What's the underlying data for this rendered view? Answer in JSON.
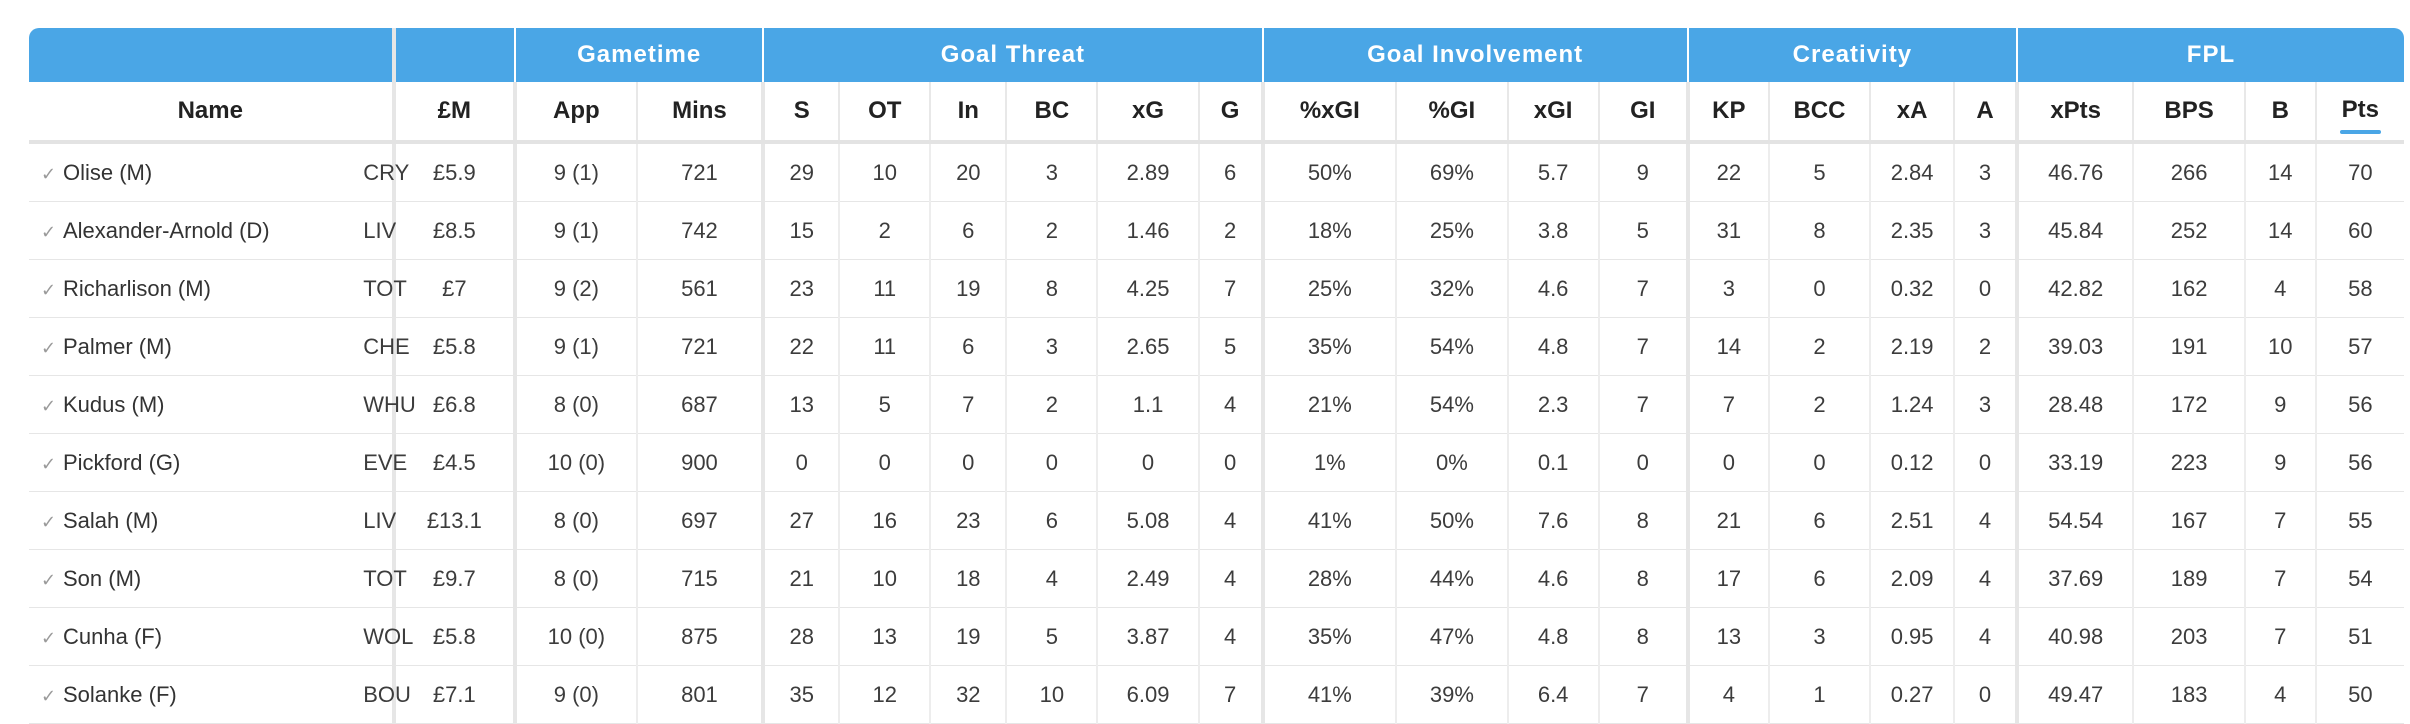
{
  "groups": {
    "gametime": "Gametime",
    "goal_threat": "Goal Threat",
    "goal_involvement": "Goal Involvement",
    "creativity": "Creativity",
    "fpl": "FPL"
  },
  "columns": {
    "name": "Name",
    "price": "£M",
    "app": "App",
    "mins": "Mins",
    "s": "S",
    "ot": "OT",
    "in": "In",
    "bc": "BC",
    "xg": "xG",
    "g": "G",
    "pct_xgi": "%xGI",
    "pct_gi": "%GI",
    "xgi": "xGI",
    "gi": "GI",
    "kp": "KP",
    "bcc": "BCC",
    "xa": "xA",
    "a": "A",
    "xpts": "xPts",
    "bps": "BPS",
    "b": "B",
    "pts": "Pts"
  },
  "sorted_column": "pts",
  "check_icon": "✓",
  "rows": [
    {
      "player": "Olise (M)",
      "team": "CRY",
      "price": "£5.9",
      "app": "9 (1)",
      "mins": "721",
      "s": "29",
      "ot": "10",
      "in": "20",
      "bc": "3",
      "xg": "2.89",
      "g": "6",
      "pct_xgi": "50%",
      "pct_gi": "69%",
      "xgi": "5.7",
      "gi": "9",
      "kp": "22",
      "bcc": "5",
      "xa": "2.84",
      "a": "3",
      "xpts": "46.76",
      "bps": "266",
      "b": "14",
      "pts": "70"
    },
    {
      "player": "Alexander-Arnold (D)",
      "team": "LIV",
      "price": "£8.5",
      "app": "9 (1)",
      "mins": "742",
      "s": "15",
      "ot": "2",
      "in": "6",
      "bc": "2",
      "xg": "1.46",
      "g": "2",
      "pct_xgi": "18%",
      "pct_gi": "25%",
      "xgi": "3.8",
      "gi": "5",
      "kp": "31",
      "bcc": "8",
      "xa": "2.35",
      "a": "3",
      "xpts": "45.84",
      "bps": "252",
      "b": "14",
      "pts": "60"
    },
    {
      "player": "Richarlison (M)",
      "team": "TOT",
      "price": "£7",
      "app": "9 (2)",
      "mins": "561",
      "s": "23",
      "ot": "11",
      "in": "19",
      "bc": "8",
      "xg": "4.25",
      "g": "7",
      "pct_xgi": "25%",
      "pct_gi": "32%",
      "xgi": "4.6",
      "gi": "7",
      "kp": "3",
      "bcc": "0",
      "xa": "0.32",
      "a": "0",
      "xpts": "42.82",
      "bps": "162",
      "b": "4",
      "pts": "58"
    },
    {
      "player": "Palmer (M)",
      "team": "CHE",
      "price": "£5.8",
      "app": "9 (1)",
      "mins": "721",
      "s": "22",
      "ot": "11",
      "in": "6",
      "bc": "3",
      "xg": "2.65",
      "g": "5",
      "pct_xgi": "35%",
      "pct_gi": "54%",
      "xgi": "4.8",
      "gi": "7",
      "kp": "14",
      "bcc": "2",
      "xa": "2.19",
      "a": "2",
      "xpts": "39.03",
      "bps": "191",
      "b": "10",
      "pts": "57"
    },
    {
      "player": "Kudus (M)",
      "team": "WHU",
      "price": "£6.8",
      "app": "8 (0)",
      "mins": "687",
      "s": "13",
      "ot": "5",
      "in": "7",
      "bc": "2",
      "xg": "1.1",
      "g": "4",
      "pct_xgi": "21%",
      "pct_gi": "54%",
      "xgi": "2.3",
      "gi": "7",
      "kp": "7",
      "bcc": "2",
      "xa": "1.24",
      "a": "3",
      "xpts": "28.48",
      "bps": "172",
      "b": "9",
      "pts": "56"
    },
    {
      "player": "Pickford (G)",
      "team": "EVE",
      "price": "£4.5",
      "app": "10 (0)",
      "mins": "900",
      "s": "0",
      "ot": "0",
      "in": "0",
      "bc": "0",
      "xg": "0",
      "g": "0",
      "pct_xgi": "1%",
      "pct_gi": "0%",
      "xgi": "0.1",
      "gi": "0",
      "kp": "0",
      "bcc": "0",
      "xa": "0.12",
      "a": "0",
      "xpts": "33.19",
      "bps": "223",
      "b": "9",
      "pts": "56"
    },
    {
      "player": "Salah (M)",
      "team": "LIV",
      "price": "£13.1",
      "app": "8 (0)",
      "mins": "697",
      "s": "27",
      "ot": "16",
      "in": "23",
      "bc": "6",
      "xg": "5.08",
      "g": "4",
      "pct_xgi": "41%",
      "pct_gi": "50%",
      "xgi": "7.6",
      "gi": "8",
      "kp": "21",
      "bcc": "6",
      "xa": "2.51",
      "a": "4",
      "xpts": "54.54",
      "bps": "167",
      "b": "7",
      "pts": "55"
    },
    {
      "player": "Son (M)",
      "team": "TOT",
      "price": "£9.7",
      "app": "8 (0)",
      "mins": "715",
      "s": "21",
      "ot": "10",
      "in": "18",
      "bc": "4",
      "xg": "2.49",
      "g": "4",
      "pct_xgi": "28%",
      "pct_gi": "44%",
      "xgi": "4.6",
      "gi": "8",
      "kp": "17",
      "bcc": "6",
      "xa": "2.09",
      "a": "4",
      "xpts": "37.69",
      "bps": "189",
      "b": "7",
      "pts": "54"
    },
    {
      "player": "Cunha (F)",
      "team": "WOL",
      "price": "£5.8",
      "app": "10 (0)",
      "mins": "875",
      "s": "28",
      "ot": "13",
      "in": "19",
      "bc": "5",
      "xg": "3.87",
      "g": "4",
      "pct_xgi": "35%",
      "pct_gi": "47%",
      "xgi": "4.8",
      "gi": "8",
      "kp": "13",
      "bcc": "3",
      "xa": "0.95",
      "a": "4",
      "xpts": "40.98",
      "bps": "203",
      "b": "7",
      "pts": "51"
    },
    {
      "player": "Solanke (F)",
      "team": "BOU",
      "price": "£7.1",
      "app": "9 (0)",
      "mins": "801",
      "s": "35",
      "ot": "12",
      "in": "32",
      "bc": "10",
      "xg": "6.09",
      "g": "7",
      "pct_xgi": "41%",
      "pct_gi": "39%",
      "xgi": "6.4",
      "gi": "7",
      "kp": "4",
      "bcc": "1",
      "xa": "0.27",
      "a": "0",
      "xpts": "49.47",
      "bps": "183",
      "b": "4",
      "pts": "50"
    }
  ]
}
